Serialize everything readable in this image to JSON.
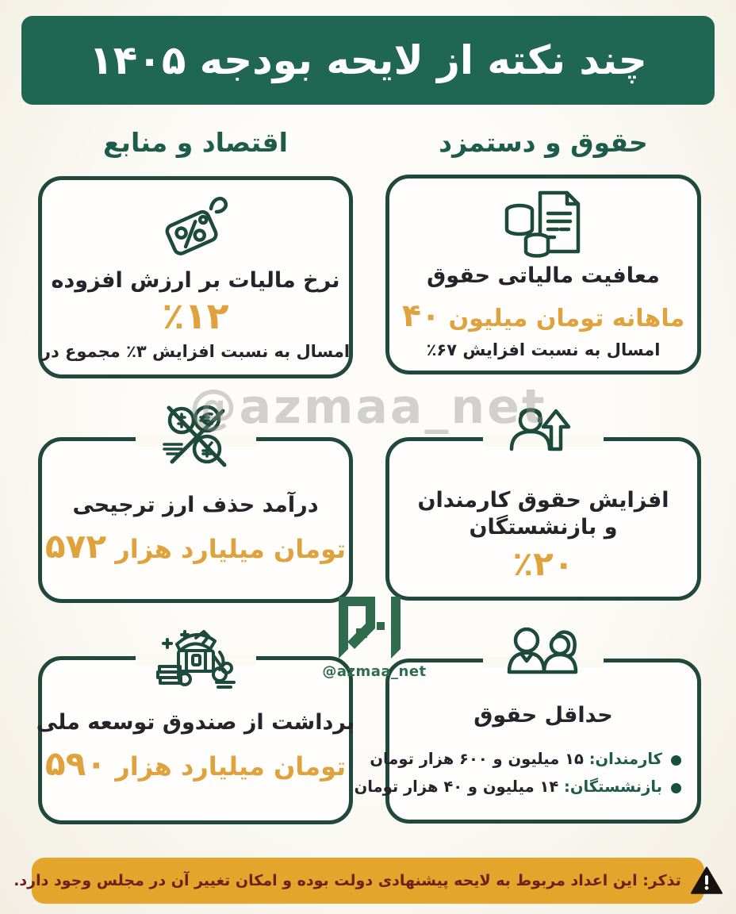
{
  "page": {
    "title": "چند نکته از لایحه بودجه ۱۴۰۵"
  },
  "columns": {
    "right": {
      "header": "حقوق و دستمزد"
    },
    "left": {
      "header": "اقتصاد و منابع"
    }
  },
  "cards": {
    "salary_tax_exemption": {
      "icon": "coins-document-icon",
      "title": "معافیت مالیاتی حقوق",
      "value": "۴۰ میلیون تومان ماهانه",
      "subtitle": "٪۶۷ افزایش نسبت به امسال"
    },
    "vat_rate": {
      "icon": "price-tag-percent-icon",
      "title": "نرخ مالیات بر ارزش افزوده",
      "value": "٪۱۲",
      "subtitle": "در مجموع ٪۳ افزایش نسبت به امسال"
    },
    "salary_increase": {
      "icon": "person-arrow-up-icon",
      "title": "افزایش حقوق کارمندان و بازنشستگان",
      "value": "٪۲۰"
    },
    "preferential_currency_income": {
      "icon": "no-currency-icon",
      "title": "درآمد حذف ارز ترجیحی",
      "value": "۵۷۲ هزار میلیارد تومان"
    },
    "minimum_salary": {
      "icon": "two-people-icon",
      "title": "حداقل حقوق",
      "bullets": [
        {
          "label": "کارمندان:",
          "value": "۱۵ میلیون و ۶۰۰ هزار تومان"
        },
        {
          "label": "بازنشستگان:",
          "value": "۱۴ میلیون و ۴۰ هزار تومان"
        }
      ]
    },
    "ndf_withdrawal": {
      "icon": "treasure-chest-icon",
      "title": "برداشت از صندوق توسعه ملی",
      "value": "۵۹۰ هزار میلیارد تومان"
    }
  },
  "watermark": {
    "big": "@azmaa_net",
    "small": "@azmaa_net"
  },
  "footer": {
    "note": "تذکر: این اعداد مربوط به لایحه پیشنهادی دولت بوده و امکان تغییر آن در مجلس وجود دارد."
  },
  "colors": {
    "banner_green": "#1F6752",
    "border_green": "#21493B",
    "heading_green": "#1D5C48",
    "accent_gold": "#DFA23C",
    "ink": "#26242B",
    "footer_background": "#E5A42C",
    "footer_text": "#6E2019",
    "page_background": "#F5F2E8"
  }
}
